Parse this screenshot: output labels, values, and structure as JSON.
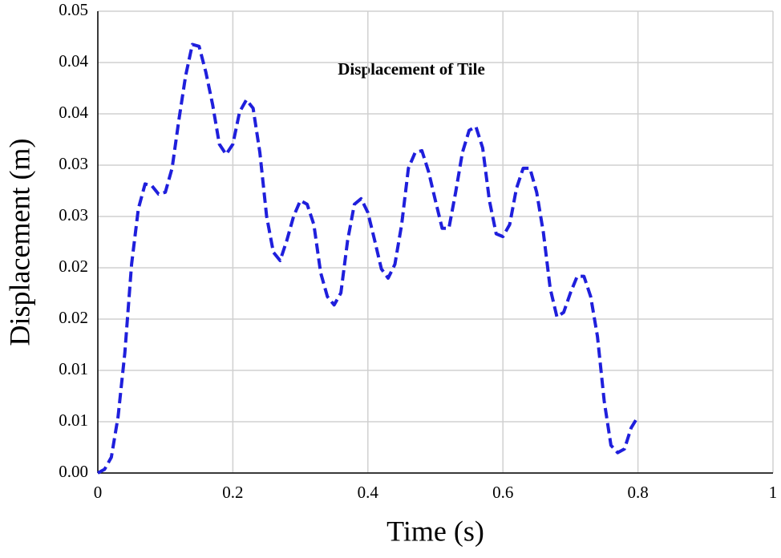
{
  "chart_data": {
    "type": "line",
    "title": "Displacement of Tile",
    "xlabel": "Time (s)",
    "ylabel": "Displacement (m)",
    "x": [
      0,
      0.01,
      0.02,
      0.03,
      0.04,
      0.05,
      0.06,
      0.07,
      0.08,
      0.09,
      0.1,
      0.11,
      0.12,
      0.13,
      0.14,
      0.15,
      0.16,
      0.17,
      0.18,
      0.19,
      0.2,
      0.21,
      0.22,
      0.23,
      0.24,
      0.25,
      0.26,
      0.27,
      0.28,
      0.29,
      0.3,
      0.31,
      0.32,
      0.33,
      0.34,
      0.35,
      0.36,
      0.37,
      0.38,
      0.39,
      0.4,
      0.41,
      0.42,
      0.43,
      0.44,
      0.45,
      0.46,
      0.47,
      0.48,
      0.49,
      0.5,
      0.51,
      0.52,
      0.53,
      0.54,
      0.55,
      0.56,
      0.57,
      0.58,
      0.59,
      0.6,
      0.61,
      0.62,
      0.63,
      0.64,
      0.65,
      0.66,
      0.67,
      0.68,
      0.69,
      0.7,
      0.71,
      0.72,
      0.73,
      0.74,
      0.75,
      0.76,
      0.77,
      0.78,
      0.79,
      0.8
    ],
    "series": [
      {
        "name": "Displacement of Tile",
        "color": "#1f1fdc",
        "values": [
          0,
          0.0004,
          0.0017,
          0.0061,
          0.013,
          0.0226,
          0.0286,
          0.0313,
          0.0311,
          0.0302,
          0.0304,
          0.033,
          0.0382,
          0.043,
          0.0464,
          0.0462,
          0.0434,
          0.0399,
          0.0356,
          0.0345,
          0.0356,
          0.0391,
          0.0404,
          0.0395,
          0.0347,
          0.0278,
          0.0239,
          0.023,
          0.0252,
          0.0278,
          0.0295,
          0.0291,
          0.0269,
          0.0217,
          0.0191,
          0.0182,
          0.0195,
          0.0252,
          0.0291,
          0.0297,
          0.0282,
          0.0252,
          0.0221,
          0.0211,
          0.0226,
          0.0269,
          0.033,
          0.0347,
          0.0349,
          0.0326,
          0.0295,
          0.0265,
          0.0265,
          0.0304,
          0.0347,
          0.0371,
          0.0375,
          0.0352,
          0.0295,
          0.0259,
          0.0256,
          0.0269,
          0.0308,
          0.033,
          0.033,
          0.0304,
          0.026,
          0.02,
          0.0169,
          0.0174,
          0.0195,
          0.0213,
          0.0213,
          0.0191,
          0.0148,
          0.0078,
          0.003,
          0.0022,
          0.0026,
          0.0049,
          0.0061
        ]
      }
    ],
    "xlim": [
      0,
      1
    ],
    "xticks": [
      0,
      0.2,
      0.4,
      0.6,
      0.8,
      1
    ],
    "ylim": [
      0,
      0.05
    ],
    "yticks": [
      {
        "value": 0,
        "label": "0.00"
      },
      {
        "value": 0.005556,
        "label": "0.01"
      },
      {
        "value": 0.011111,
        "label": "0.01"
      },
      {
        "value": 0.016667,
        "label": "0.02"
      },
      {
        "value": 0.022222,
        "label": "0.02"
      },
      {
        "value": 0.027778,
        "label": "0.03"
      },
      {
        "value": 0.033333,
        "label": "0.03"
      },
      {
        "value": 0.038889,
        "label": "0.04"
      },
      {
        "value": 0.044444,
        "label": "0.04"
      },
      {
        "value": 0.05,
        "label": "0.05"
      }
    ],
    "grid": true
  }
}
